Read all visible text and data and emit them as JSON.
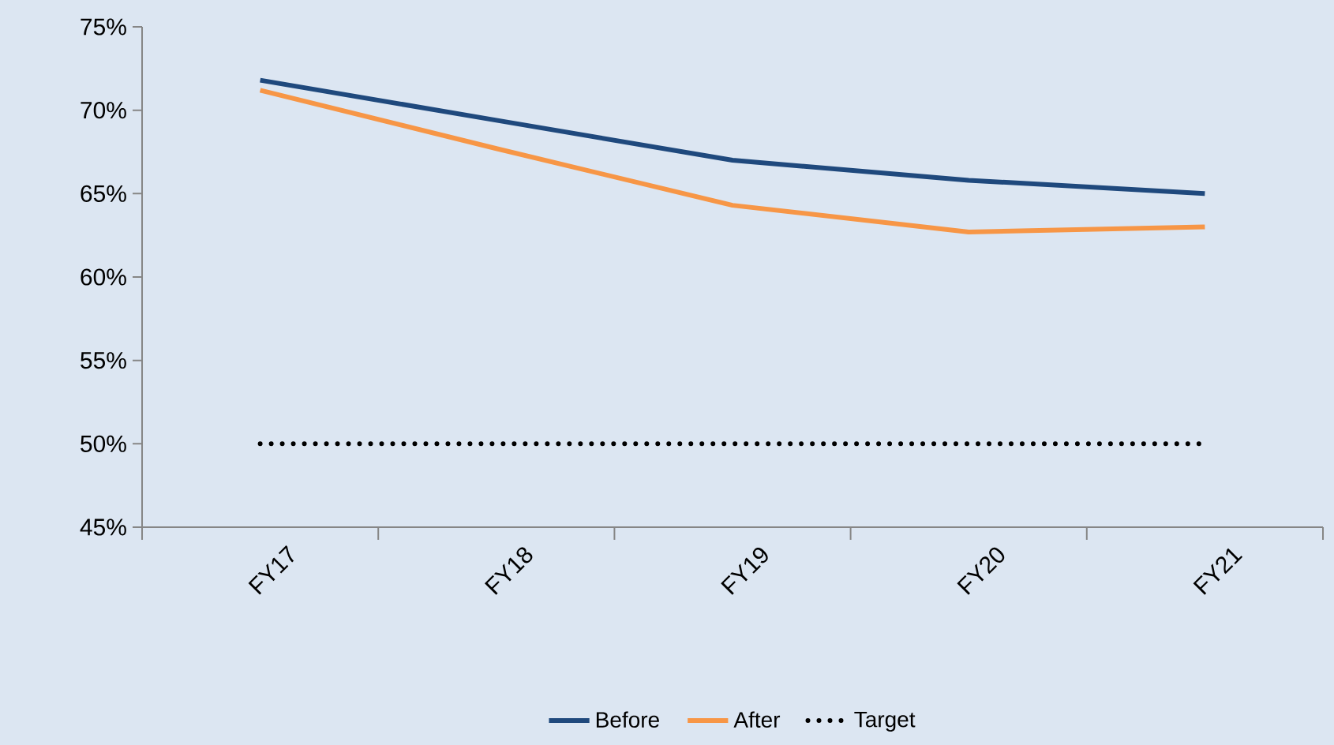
{
  "chart_data": {
    "type": "line",
    "categories": [
      "FY17",
      "FY18",
      "FY19",
      "FY20",
      "FY21"
    ],
    "series": [
      {
        "name": "Before",
        "color": "#1f497d",
        "values": [
          71.8,
          69.4,
          67.0,
          65.8,
          65.0
        ]
      },
      {
        "name": "After",
        "color": "#f79646",
        "values": [
          71.2,
          67.7,
          64.3,
          62.7,
          63.0
        ]
      },
      {
        "name": "Target",
        "color": "#000000",
        "values": [
          50,
          50,
          50,
          50,
          50
        ],
        "line_style": "dotted"
      }
    ],
    "ylim": [
      45,
      75
    ],
    "yticks": [
      {
        "value": 45,
        "label": "45%"
      },
      {
        "value": 50,
        "label": "50%"
      },
      {
        "value": 55,
        "label": "55%"
      },
      {
        "value": 60,
        "label": "60%"
      },
      {
        "value": 65,
        "label": "65%"
      },
      {
        "value": 70,
        "label": "70%"
      },
      {
        "value": 75,
        "label": "75%"
      }
    ],
    "grid": false,
    "legend": "bottom",
    "marker": "none",
    "line_style": "solid"
  }
}
